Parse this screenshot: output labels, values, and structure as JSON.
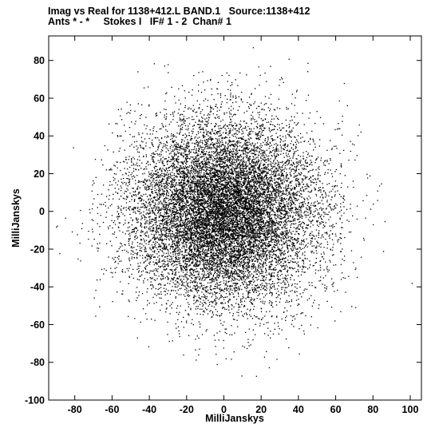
{
  "header": {
    "title_line_1": "Imag vs Real for 1138+412.L BAND.1   Source:1138+412",
    "title_line_2": "Ants * - *     Stokes I   IF# 1 - 2  Chan# 1"
  },
  "chart_data": {
    "type": "scatter",
    "xlabel": "MilliJanskys",
    "ylabel": "MilliJanskys",
    "xlim": [
      -94,
      106
    ],
    "ylim": [
      -100,
      93
    ],
    "xticks": [
      -80,
      -60,
      -40,
      -20,
      0,
      20,
      40,
      60,
      80,
      100
    ],
    "yticks": [
      -100,
      -80,
      -60,
      -40,
      -20,
      0,
      20,
      40,
      60,
      80
    ],
    "grid": false,
    "marker_color": "#000000",
    "distribution": {
      "center": [
        0,
        0
      ],
      "spread_x": 25,
      "spread_y": 24,
      "point_count": 14000
    }
  }
}
